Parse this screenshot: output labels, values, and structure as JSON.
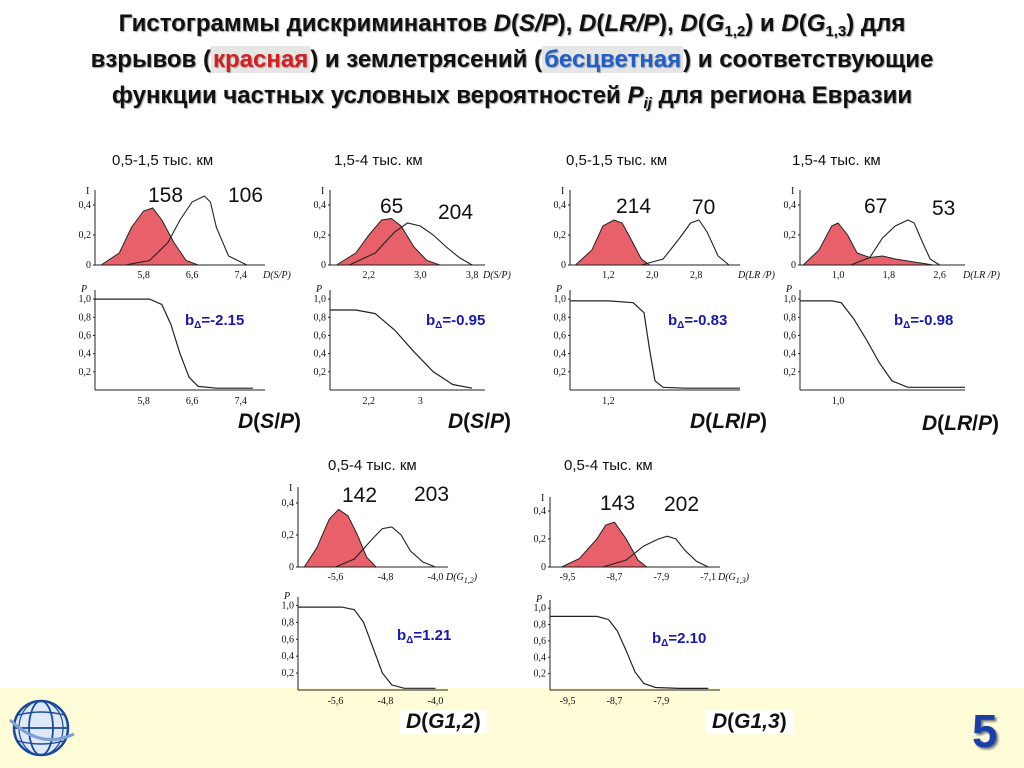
{
  "title": {
    "l1_a": "Гистограммы дискриминантов ",
    "D": "D",
    "sp": "S/P",
    "lrp": "LR/P",
    "g": "G",
    "g12_sub": "1,2",
    "g13_sub": "1,3",
    "and": " и ",
    "sep": ", ",
    "dlya": " для",
    "l2_a": "взрывов (",
    "red_word": "красная",
    "l2_b": ") и землетрясений (",
    "blue_word": "бесцветная",
    "l2_c": ") и соответствующие",
    "l3_a": "функции частных условных вероятностей ",
    "P": "P",
    "ij": "ij",
    "l3_b": " для региона Евразии"
  },
  "page_number": "5",
  "legend": {
    "red_series": "красная",
    "blank_series": "бесцветная"
  },
  "chart_data": [
    {
      "type": "area",
      "id": "sp_short",
      "range_label": "0,5-1,5 тыс. км",
      "hist_axis_label": "D(S/P)",
      "hist_y_label": "I",
      "hist_y_ticks": [
        "0,4",
        "0,2",
        "0"
      ],
      "hist_y_range": [
        0,
        0.5
      ],
      "hist_x_ticks": [
        "5,8",
        "6,6",
        "7,4"
      ],
      "hist_x_tick_values": [
        5.8,
        6.6,
        7.4
      ],
      "x_range": [
        5.0,
        7.8
      ],
      "counts": [
        "158",
        "106"
      ],
      "red_series": {
        "x": [
          5.1,
          5.4,
          5.6,
          5.8,
          5.95,
          6.1,
          6.3,
          6.5,
          6.7
        ],
        "y": [
          0,
          0.08,
          0.25,
          0.36,
          0.38,
          0.3,
          0.15,
          0.03,
          0
        ]
      },
      "blank_series": {
        "x": [
          5.5,
          5.9,
          6.2,
          6.4,
          6.6,
          6.8,
          6.9,
          7.0,
          7.2,
          7.5
        ],
        "y": [
          0,
          0.03,
          0.15,
          0.3,
          0.42,
          0.46,
          0.42,
          0.25,
          0.06,
          0
        ]
      },
      "prob_y_label": "P",
      "prob_y_ticks": [
        "1,0",
        "0,8",
        "0,6",
        "0,4",
        "0,2"
      ],
      "prob_y_range": [
        0.0,
        1.1
      ],
      "prob_x_ticks": [
        "5,8",
        "6,6",
        "7,4"
      ],
      "prob_x_tick_values": [
        5.8,
        6.6,
        7.4
      ],
      "prob_series": {
        "x": [
          5.0,
          5.6,
          5.9,
          6.1,
          6.25,
          6.4,
          6.55,
          6.7,
          7.0,
          7.6
        ],
        "y": [
          1.0,
          1.0,
          1.0,
          0.94,
          0.72,
          0.4,
          0.14,
          0.04,
          0.02,
          0.02
        ]
      },
      "b_label": "b",
      "b_sub": "Δ",
      "b_value": "=-2.15",
      "d_label_D": "D",
      "d_label_arg": "S",
      "d_label_sep": "/",
      "d_label_arg2": "P"
    },
    {
      "type": "area",
      "id": "sp_long",
      "range_label": "1,5-4 тыс. км",
      "hist_axis_label": "D(S/P)",
      "hist_y_label": "I",
      "hist_y_ticks": [
        "0,4",
        "0,2",
        "0"
      ],
      "hist_y_range": [
        0,
        0.5
      ],
      "hist_x_ticks": [
        "2,2",
        "3,0",
        "3,8"
      ],
      "hist_x_tick_values": [
        2.2,
        3.0,
        3.8
      ],
      "x_range": [
        1.6,
        4.0
      ],
      "counts": [
        "65",
        "204"
      ],
      "red_series": {
        "x": [
          1.7,
          2.0,
          2.2,
          2.4,
          2.55,
          2.7,
          2.9,
          3.1,
          3.3
        ],
        "y": [
          0,
          0.08,
          0.2,
          0.3,
          0.31,
          0.26,
          0.12,
          0.03,
          0
        ]
      },
      "blank_series": {
        "x": [
          1.9,
          2.3,
          2.6,
          2.8,
          3.0,
          3.2,
          3.4,
          3.6,
          3.8
        ],
        "y": [
          0,
          0.08,
          0.22,
          0.28,
          0.26,
          0.2,
          0.12,
          0.05,
          0
        ]
      },
      "prob_y_label": "P",
      "prob_y_ticks": [
        "1,0",
        "0,8",
        "0,6",
        "0,4",
        "0,2"
      ],
      "prob_y_range": [
        0.0,
        1.1
      ],
      "prob_x_ticks": [
        "2,2",
        "3"
      ],
      "prob_x_tick_values": [
        2.2,
        3.0
      ],
      "prob_series": {
        "x": [
          1.6,
          2.0,
          2.3,
          2.6,
          2.9,
          3.2,
          3.5,
          3.8
        ],
        "y": [
          0.88,
          0.88,
          0.84,
          0.66,
          0.42,
          0.2,
          0.06,
          0.02
        ]
      },
      "b_label": "b",
      "b_sub": "Δ",
      "b_value": "=-0.95",
      "d_label_D": "D",
      "d_label_arg": "S",
      "d_label_sep": "/",
      "d_label_arg2": "P"
    },
    {
      "type": "area",
      "id": "lrp_short",
      "range_label": "0,5-1,5 тыс. км",
      "hist_axis_label": "D(LR /P)",
      "hist_y_label": "I",
      "hist_y_ticks": [
        "0,4",
        "0,2",
        "0"
      ],
      "hist_y_range": [
        0,
        0.5
      ],
      "hist_x_ticks": [
        "1,2",
        "2,0",
        "2,8"
      ],
      "hist_x_tick_values": [
        1.2,
        2.0,
        2.8
      ],
      "x_range": [
        0.5,
        3.6
      ],
      "counts": [
        "214",
        "70"
      ],
      "red_series": {
        "x": [
          0.6,
          0.9,
          1.1,
          1.3,
          1.45,
          1.6,
          1.8,
          1.95
        ],
        "y": [
          0,
          0.1,
          0.26,
          0.3,
          0.28,
          0.18,
          0.04,
          0
        ]
      },
      "blank_series": {
        "x": [
          1.8,
          2.2,
          2.5,
          2.7,
          2.85,
          3.0,
          3.2,
          3.4
        ],
        "y": [
          0,
          0.04,
          0.18,
          0.28,
          0.3,
          0.22,
          0.06,
          0
        ]
      },
      "prob_y_label": "P",
      "prob_y_ticks": [
        "1,0",
        "0,8",
        "0,6",
        "0,4",
        "0,2"
      ],
      "prob_y_range": [
        0.0,
        1.1
      ],
      "prob_x_ticks": [
        "1,2"
      ],
      "prob_x_tick_values": [
        1.2
      ],
      "prob_series": {
        "x": [
          0.5,
          1.2,
          1.65,
          1.85,
          1.95,
          2.05,
          2.2,
          2.6,
          3.6
        ],
        "y": [
          0.98,
          0.98,
          0.96,
          0.85,
          0.45,
          0.1,
          0.03,
          0.02,
          0.02
        ]
      },
      "b_label": "b",
      "b_sub": "Δ",
      "b_value": "=-0.83",
      "d_label_D": "D",
      "d_label_arg": "LR",
      "d_label_sep": "/",
      "d_label_arg2": "P"
    },
    {
      "type": "area",
      "id": "lrp_long",
      "range_label": "1,5-4 тыс. км",
      "hist_axis_label": "D(LR /P)",
      "hist_y_label": "I",
      "hist_y_ticks": [
        "0,4",
        "0,2",
        "0"
      ],
      "hist_y_range": [
        0,
        0.5
      ],
      "hist_x_ticks": [
        "1,0",
        "1,8",
        "2,6"
      ],
      "hist_x_tick_values": [
        1.0,
        1.8,
        2.6
      ],
      "x_range": [
        0.4,
        3.0
      ],
      "counts": [
        "67",
        "53"
      ],
      "red_series": {
        "x": [
          0.45,
          0.7,
          0.9,
          1.0,
          1.15,
          1.3,
          1.5,
          1.7,
          1.9,
          2.2,
          2.5
        ],
        "y": [
          0,
          0.1,
          0.26,
          0.28,
          0.2,
          0.08,
          0.05,
          0.06,
          0.04,
          0.02,
          0
        ]
      },
      "blank_series": {
        "x": [
          1.2,
          1.5,
          1.7,
          1.9,
          2.1,
          2.2,
          2.3,
          2.45,
          2.6
        ],
        "y": [
          0,
          0.05,
          0.18,
          0.26,
          0.3,
          0.28,
          0.18,
          0.04,
          0
        ]
      },
      "prob_y_label": "P",
      "prob_y_ticks": [
        "1,0",
        "0,8",
        "0,6",
        "0,4",
        "0,2"
      ],
      "prob_y_range": [
        0.0,
        1.1
      ],
      "prob_x_ticks": [
        "1,0"
      ],
      "prob_x_tick_values": [
        1.0
      ],
      "prob_series": {
        "x": [
          0.4,
          0.9,
          1.05,
          1.25,
          1.45,
          1.65,
          1.85,
          2.1,
          3.0
        ],
        "y": [
          0.98,
          0.98,
          0.96,
          0.78,
          0.55,
          0.3,
          0.1,
          0.03,
          0.03
        ]
      },
      "b_label": "b",
      "b_sub": "Δ",
      "b_value": "=-0.98",
      "d_label_D": "D",
      "d_label_arg": "LR",
      "d_label_sep": "/",
      "d_label_arg2": "P"
    },
    {
      "type": "area",
      "id": "g12",
      "range_label": "0,5-4 тыс. км",
      "hist_axis_label": "D(G",
      "hist_axis_sub": "1,2",
      "hist_y_label": "I",
      "hist_y_ticks": [
        "0,4",
        "0,2",
        "0"
      ],
      "hist_y_range": [
        0,
        0.5
      ],
      "hist_x_ticks": [
        "-5,6",
        "-4,8",
        "-4,0"
      ],
      "hist_x_tick_values": [
        -5.6,
        -4.8,
        -4.0
      ],
      "x_range": [
        -6.2,
        -3.8
      ],
      "counts": [
        "142",
        "203"
      ],
      "red_series": {
        "x": [
          -6.1,
          -5.9,
          -5.7,
          -5.55,
          -5.4,
          -5.25,
          -5.1,
          -4.95
        ],
        "y": [
          0,
          0.12,
          0.3,
          0.36,
          0.32,
          0.2,
          0.06,
          0
        ]
      },
      "blank_series": {
        "x": [
          -5.6,
          -5.3,
          -5.0,
          -4.85,
          -4.7,
          -4.55,
          -4.4,
          -4.2,
          -4.0
        ],
        "y": [
          0,
          0.05,
          0.18,
          0.24,
          0.25,
          0.2,
          0.1,
          0.03,
          0
        ]
      },
      "prob_y_label": "P",
      "prob_y_ticks": [
        "1,0",
        "0,8",
        "0,6",
        "0,4",
        "0,2"
      ],
      "prob_y_range": [
        0.0,
        1.1
      ],
      "prob_x_ticks": [
        "-5,6",
        "-4,8",
        "-4,0"
      ],
      "prob_x_tick_values": [
        -5.6,
        -4.8,
        -4.0
      ],
      "prob_series": {
        "x": [
          -6.2,
          -5.5,
          -5.3,
          -5.15,
          -5.0,
          -4.85,
          -4.7,
          -4.5,
          -4.0
        ],
        "y": [
          0.98,
          0.98,
          0.95,
          0.8,
          0.5,
          0.2,
          0.06,
          0.02,
          0.02
        ]
      },
      "b_label": "b",
      "b_sub": "Δ",
      "b_value": "=1.21",
      "d_label_D": "D",
      "d_label_arg": "G1,2"
    },
    {
      "type": "area",
      "id": "g13",
      "range_label": "0,5-4 тыс. км",
      "hist_axis_label": "D(G",
      "hist_axis_sub": "1,3",
      "hist_y_label": "I",
      "hist_y_ticks": [
        "0,4",
        "0,2",
        "0"
      ],
      "hist_y_range": [
        0,
        0.5
      ],
      "hist_x_ticks": [
        "-9,5",
        "-8,7",
        "-7,9",
        "-7,1"
      ],
      "hist_x_tick_values": [
        -9.5,
        -8.7,
        -7.9,
        -7.1
      ],
      "x_range": [
        -9.8,
        -6.9
      ],
      "counts": [
        "143",
        "202"
      ],
      "red_series": {
        "x": [
          -9.6,
          -9.3,
          -9.0,
          -8.85,
          -8.7,
          -8.5,
          -8.3,
          -8.15
        ],
        "y": [
          0,
          0.06,
          0.2,
          0.3,
          0.32,
          0.2,
          0.05,
          0
        ]
      },
      "blank_series": {
        "x": [
          -8.9,
          -8.5,
          -8.2,
          -7.95,
          -7.8,
          -7.65,
          -7.5,
          -7.3,
          -7.1
        ],
        "y": [
          0,
          0.05,
          0.15,
          0.2,
          0.22,
          0.2,
          0.12,
          0.04,
          0
        ]
      },
      "prob_y_label": "P",
      "prob_y_ticks": [
        "1,0",
        "0,8",
        "0,6",
        "0,4",
        "0,2"
      ],
      "prob_y_range": [
        0.0,
        1.1
      ],
      "prob_x_ticks": [
        "-9,5",
        "-8,7",
        "-7,9"
      ],
      "prob_x_tick_values": [
        -9.5,
        -8.7,
        -7.9
      ],
      "prob_series": {
        "x": [
          -9.8,
          -9.0,
          -8.8,
          -8.65,
          -8.5,
          -8.35,
          -8.2,
          -8.0,
          -7.6,
          -7.1
        ],
        "y": [
          0.9,
          0.9,
          0.86,
          0.72,
          0.48,
          0.22,
          0.08,
          0.03,
          0.02,
          0.02
        ]
      },
      "b_label": "b",
      "b_sub": "Δ",
      "b_value": "=2.10",
      "d_label_D": "D",
      "d_label_arg": "G1,3"
    }
  ]
}
